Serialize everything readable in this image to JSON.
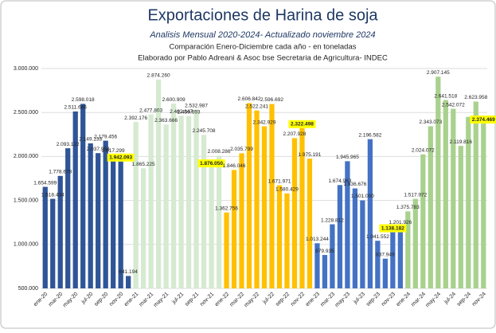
{
  "chart_data": {
    "type": "bar",
    "title": "Exportaciones de Harina de soja",
    "subtitle": "Analisis Mensual 2020-2024- Actualizado noviembre 2024",
    "subtitle2": "Comparación Enero-Diciembre cada año - en toneladas",
    "subtitle3": "Elaborado por Pablo Adreani & Asoc bse Secretaria de Agricultura- INDEC",
    "categories": [
      "ene-20",
      null,
      "mar-20",
      null,
      "may-20",
      null,
      "jul-20",
      null,
      "sep-20",
      null,
      "nov-20",
      null,
      "ene-21",
      null,
      "mar-21",
      null,
      "may-21",
      null,
      "jul-21",
      null,
      "sep-21",
      null,
      "nov-21",
      null,
      "ene-22",
      null,
      "mar-22",
      null,
      "may-22",
      null,
      "jul-22",
      null,
      "sep-22",
      null,
      "nov-22",
      null,
      "ene-23",
      null,
      "mar-23",
      null,
      "may-23",
      null,
      "jul-23",
      null,
      "sep-23",
      null,
      "nov-23",
      null,
      "ene-24",
      null,
      "mar-24",
      null,
      "may-24",
      null,
      "jul-24",
      null,
      "sep-24",
      null,
      "nov-24"
    ],
    "values": [
      1654599,
      1518434,
      1778678,
      2093122,
      2511686,
      2598018,
      2149133,
      2037958,
      2179456,
      2017299,
      1942093,
      641194,
      2392176,
      1865225,
      2477803,
      2874260,
      2363666,
      2600909,
      2462847,
      2459693,
      2532987,
      2245708,
      1876050,
      2008286,
      1362756,
      1846046,
      2035799,
      2606842,
      2522241,
      2342929,
      2596692,
      1671971,
      1580429,
      2207928,
      2322498,
      1975191,
      1013244,
      879935,
      1228812,
      1674963,
      1945965,
      1636676,
      1501000,
      2196582,
      1041552,
      837949,
      1138182,
      1201926,
      1375783,
      1517972,
      2024072,
      2343073,
      2907145,
      2641518,
      2542072,
      2119816,
      2450000,
      2623958,
      2374469
    ],
    "value_labels": [
      "1.654.599",
      "1.518.434",
      "1.778.678",
      "2.093.122",
      "2.511.686",
      "2.598.018",
      "2.149.133",
      "2.037.958",
      "2.179.456",
      "2.017.299",
      "1.942.093",
      "641.194",
      "2.392.176",
      "1.865.225",
      "2.477.803",
      "2.874.260",
      "2.363.666",
      "2.600.909",
      "2.462.847",
      "2.459.693",
      "2.532.987",
      "2.245.708",
      "1.876.050",
      "2.008.286",
      "1.362.756",
      "1.846.046",
      "2.035.799",
      "2.606.842",
      "2.522.241",
      "2.342.929",
      "2.596.692",
      "1.671.971",
      "1.580.429",
      "2.207.928",
      "2.322.498",
      "1.975.191",
      "1.013.244",
      "879.935",
      "1.228.812",
      "1.674.963",
      "1.945.965",
      "1.636.676",
      "1.501.000",
      "2.196.582",
      "1.041.552",
      "837.949",
      "1.138.182",
      "1.201.926",
      "1.375.783",
      "1.517.972",
      "2.024.072",
      "2.343.073",
      "2.907.145",
      "2.641.518",
      "2.542.072",
      "2.119.816",
      null,
      "2.623.958",
      "2.374.469"
    ],
    "year_colors": [
      "#2f5597",
      "#d5ead0",
      "#ffc000",
      "#4472c4",
      "#a9d18e"
    ],
    "highlighted": [
      10,
      22,
      34,
      46,
      58
    ],
    "highlight_color": "#ffff00",
    "ylim": [
      500000,
      3000000
    ],
    "yticks": [
      {
        "value": 500000,
        "label": "500.000"
      },
      {
        "value": 1000000,
        "label": "1.000.000"
      },
      {
        "value": 1500000,
        "label": "1.500.000"
      },
      {
        "value": 2000000,
        "label": "2.000.000"
      },
      {
        "value": 2500000,
        "label": "2.500.000"
      },
      {
        "value": 3000000,
        "label": "3.000.000"
      }
    ],
    "grid": true
  }
}
